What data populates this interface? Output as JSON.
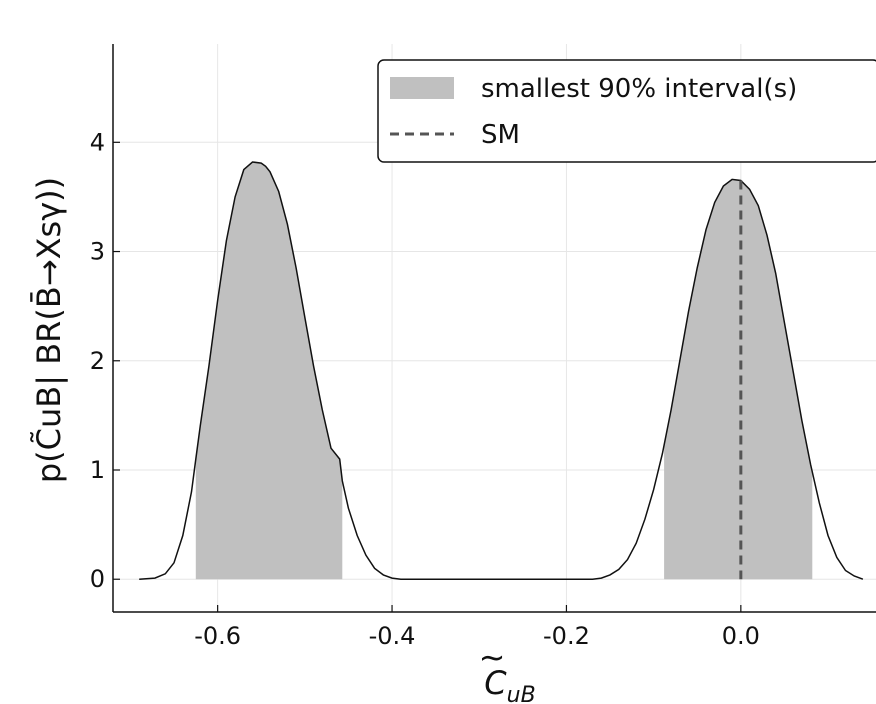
{
  "chart_data": {
    "type": "area",
    "title": "",
    "xlabel": "C̃_uB",
    "ylabel": "p(C̃_uB| BR(B̄→X_sγ))",
    "xlim": [
      -0.72,
      0.155
    ],
    "ylim": [
      -0.3,
      4.9
    ],
    "x_ticks": [
      -0.6,
      -0.4,
      -0.2,
      0.0
    ],
    "x_tick_labels": [
      "-0.6",
      "-0.4",
      "-0.2",
      "0.0"
    ],
    "y_ticks": [
      0,
      1,
      2,
      3,
      4
    ],
    "y_tick_labels": [
      "0",
      "1",
      "2",
      "3",
      "4"
    ],
    "grid": true,
    "legend_position": "top-right",
    "legend": [
      {
        "label": "smallest 90% interval(s)",
        "kind": "shaded-area",
        "color": "#c0c0c0"
      },
      {
        "label": "SM",
        "kind": "dashed-line",
        "color": "#555555"
      }
    ],
    "density_line_color": "#111111",
    "series": [
      {
        "kind": "density",
        "x": [
          -0.69,
          -0.672,
          -0.66,
          -0.65,
          -0.64,
          -0.63,
          -0.625,
          -0.62,
          -0.61,
          -0.6,
          -0.59,
          -0.58,
          -0.57,
          -0.56,
          -0.55,
          -0.545,
          -0.54,
          -0.53,
          -0.52,
          -0.51,
          -0.5,
          -0.49,
          -0.48,
          -0.47,
          -0.46,
          -0.457,
          -0.45,
          -0.44,
          -0.43,
          -0.42,
          -0.41,
          -0.4,
          -0.39,
          -0.3,
          -0.2,
          -0.17,
          -0.16,
          -0.15,
          -0.14,
          -0.13,
          -0.12,
          -0.11,
          -0.1,
          -0.09,
          -0.08,
          -0.07,
          -0.06,
          -0.05,
          -0.04,
          -0.03,
          -0.02,
          -0.01,
          0.0,
          0.01,
          0.02,
          0.03,
          0.04,
          0.05,
          0.06,
          0.07,
          0.08,
          0.09,
          0.1,
          0.11,
          0.12,
          0.13,
          0.14
        ],
        "y": [
          0.0,
          0.01,
          0.05,
          0.15,
          0.4,
          0.8,
          1.1,
          1.4,
          1.95,
          2.55,
          3.1,
          3.5,
          3.75,
          3.82,
          3.81,
          3.78,
          3.73,
          3.55,
          3.25,
          2.85,
          2.4,
          1.95,
          1.55,
          1.2,
          1.1,
          0.9,
          0.65,
          0.4,
          0.22,
          0.1,
          0.04,
          0.01,
          0.0,
          0.0,
          0.0,
          0.0,
          0.01,
          0.04,
          0.09,
          0.18,
          0.33,
          0.55,
          0.82,
          1.15,
          1.55,
          2.0,
          2.45,
          2.85,
          3.2,
          3.45,
          3.6,
          3.66,
          3.65,
          3.57,
          3.42,
          3.15,
          2.8,
          2.35,
          1.9,
          1.45,
          1.05,
          0.7,
          0.4,
          0.2,
          0.08,
          0.03,
          0.0
        ]
      }
    ],
    "shaded_intervals": [
      [
        -0.625,
        -0.457
      ],
      [
        -0.088,
        0.082
      ]
    ],
    "sm_line_x": 0.0
  }
}
